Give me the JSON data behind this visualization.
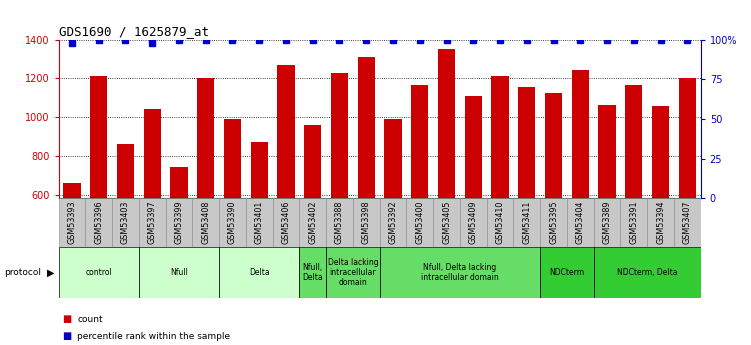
{
  "title": "GDS1690 / 1625879_at",
  "samples": [
    "GSM53393",
    "GSM53396",
    "GSM53403",
    "GSM53397",
    "GSM53399",
    "GSM53408",
    "GSM53390",
    "GSM53401",
    "GSM53406",
    "GSM53402",
    "GSM53388",
    "GSM53398",
    "GSM53392",
    "GSM53400",
    "GSM53405",
    "GSM53409",
    "GSM53410",
    "GSM53411",
    "GSM53395",
    "GSM53404",
    "GSM53389",
    "GSM53391",
    "GSM53394",
    "GSM53407"
  ],
  "counts": [
    660,
    1210,
    860,
    1040,
    740,
    1200,
    990,
    870,
    1270,
    960,
    1230,
    1310,
    990,
    1165,
    1350,
    1110,
    1210,
    1155,
    1125,
    1245,
    1065,
    1165,
    1055,
    1200
  ],
  "percentiles": [
    98,
    100,
    100,
    98,
    100,
    100,
    100,
    100,
    100,
    100,
    100,
    100,
    100,
    100,
    100,
    100,
    100,
    100,
    100,
    100,
    100,
    100,
    100,
    100
  ],
  "ylim_left": [
    580,
    1400
  ],
  "ylim_right": [
    0,
    100
  ],
  "yticks_left": [
    600,
    800,
    1000,
    1200,
    1400
  ],
  "yticks_right": [
    0,
    25,
    50,
    75,
    100
  ],
  "bar_color": "#cc0000",
  "dot_color": "#0000cc",
  "left_axis_color": "#cc0000",
  "right_axis_color": "#0000cc",
  "protocol_groups": [
    {
      "label": "control",
      "start": 0,
      "end": 3,
      "color": "#ccffcc"
    },
    {
      "label": "Nfull",
      "start": 3,
      "end": 6,
      "color": "#ccffcc"
    },
    {
      "label": "Delta",
      "start": 6,
      "end": 9,
      "color": "#ccffcc"
    },
    {
      "label": "Nfull,\nDelta",
      "start": 9,
      "end": 10,
      "color": "#66dd66"
    },
    {
      "label": "Delta lacking\nintracellular\ndomain",
      "start": 10,
      "end": 12,
      "color": "#66dd66"
    },
    {
      "label": "Nfull, Delta lacking\nintracellular domain",
      "start": 12,
      "end": 18,
      "color": "#66dd66"
    },
    {
      "label": "NDCterm",
      "start": 18,
      "end": 20,
      "color": "#33cc33"
    },
    {
      "label": "NDCterm, Delta",
      "start": 20,
      "end": 24,
      "color": "#33cc33"
    }
  ],
  "sample_bg_color": "#c8c8c8",
  "sample_border_color": "#888888",
  "fig_bg": "#ffffff"
}
